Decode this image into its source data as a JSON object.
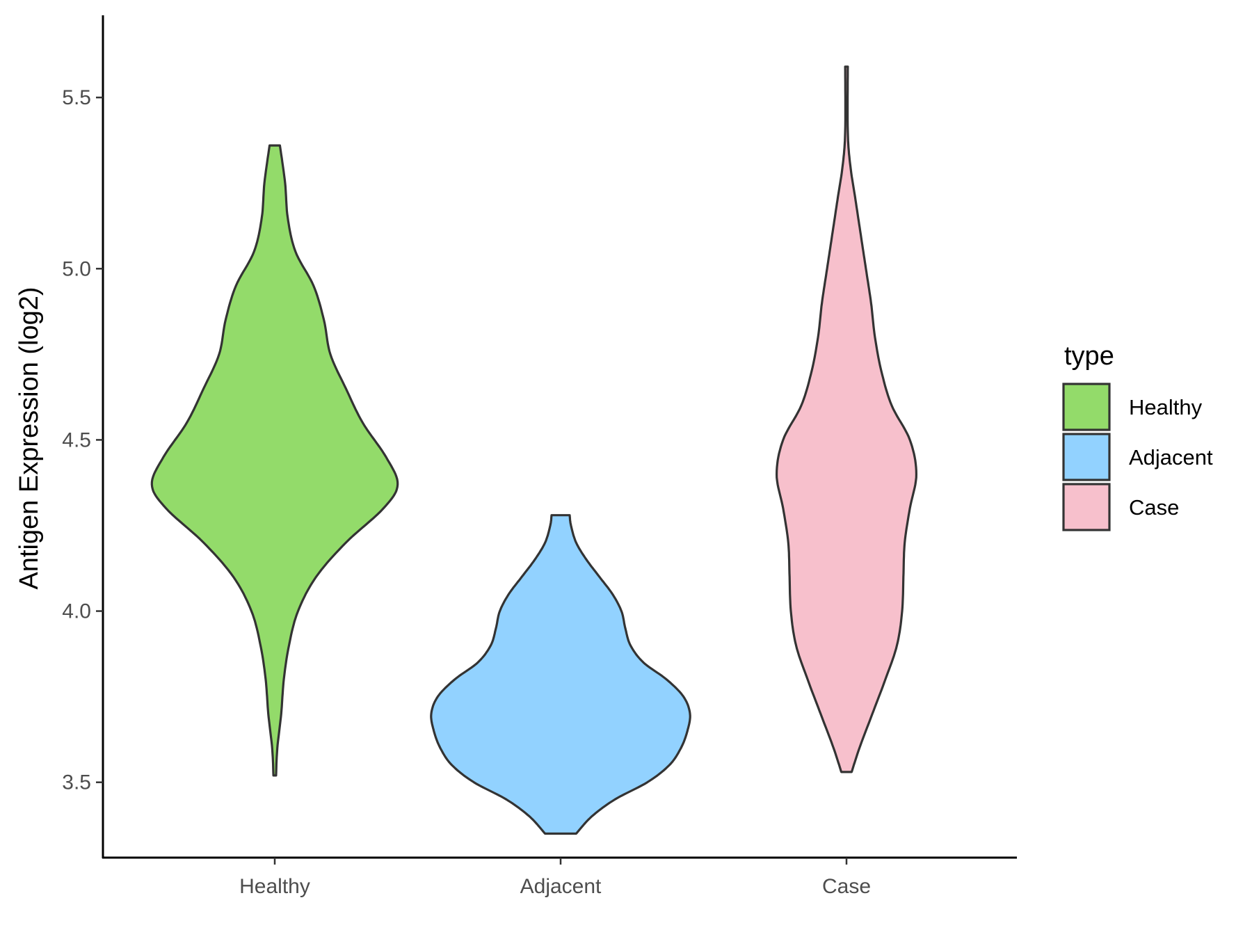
{
  "chart_data": {
    "type": "violin",
    "ylabel": "Antigen Expression (log2)",
    "xlabel": "",
    "ylim": [
      3.28,
      5.74
    ],
    "yticks": [
      3.5,
      4.0,
      4.5,
      5.0,
      5.5
    ],
    "ytick_labels": [
      "3.5",
      "4.0",
      "4.5",
      "5.0",
      "5.5"
    ],
    "categories": [
      "Healthy",
      "Adjacent",
      "Case"
    ],
    "grid": false,
    "legend": {
      "title": "type",
      "position": "right",
      "entries": [
        "Healthy",
        "Adjacent",
        "Case"
      ]
    },
    "series": [
      {
        "name": "Healthy",
        "color": "#93DB6A",
        "min": 3.52,
        "max": 5.36,
        "density_profile": [
          [
            3.52,
            0.01
          ],
          [
            3.6,
            0.02
          ],
          [
            3.7,
            0.05
          ],
          [
            3.8,
            0.07
          ],
          [
            3.9,
            0.11
          ],
          [
            4.0,
            0.18
          ],
          [
            4.1,
            0.32
          ],
          [
            4.2,
            0.55
          ],
          [
            4.3,
            0.84
          ],
          [
            4.37,
            0.95
          ],
          [
            4.45,
            0.86
          ],
          [
            4.55,
            0.68
          ],
          [
            4.65,
            0.55
          ],
          [
            4.75,
            0.43
          ],
          [
            4.85,
            0.38
          ],
          [
            4.95,
            0.3
          ],
          [
            5.05,
            0.16
          ],
          [
            5.15,
            0.1
          ],
          [
            5.25,
            0.08
          ],
          [
            5.36,
            0.04
          ]
        ]
      },
      {
        "name": "Adjacent",
        "color": "#92D2FF",
        "min": 3.35,
        "max": 4.28,
        "density_profile": [
          [
            3.35,
            0.12
          ],
          [
            3.4,
            0.24
          ],
          [
            3.45,
            0.42
          ],
          [
            3.5,
            0.67
          ],
          [
            3.55,
            0.84
          ],
          [
            3.6,
            0.93
          ],
          [
            3.65,
            0.98
          ],
          [
            3.7,
            1.0
          ],
          [
            3.75,
            0.95
          ],
          [
            3.8,
            0.82
          ],
          [
            3.85,
            0.64
          ],
          [
            3.9,
            0.54
          ],
          [
            3.95,
            0.5
          ],
          [
            4.0,
            0.47
          ],
          [
            4.05,
            0.4
          ],
          [
            4.1,
            0.3
          ],
          [
            4.15,
            0.2
          ],
          [
            4.2,
            0.12
          ],
          [
            4.25,
            0.08
          ],
          [
            4.28,
            0.07
          ]
        ]
      },
      {
        "name": "Case",
        "color": "#F7C0CC",
        "min": 3.53,
        "max": 5.59,
        "density_profile": [
          [
            3.53,
            0.04
          ],
          [
            3.6,
            0.1
          ],
          [
            3.7,
            0.2
          ],
          [
            3.8,
            0.3
          ],
          [
            3.9,
            0.39
          ],
          [
            4.0,
            0.43
          ],
          [
            4.1,
            0.44
          ],
          [
            4.2,
            0.45
          ],
          [
            4.3,
            0.49
          ],
          [
            4.4,
            0.54
          ],
          [
            4.5,
            0.49
          ],
          [
            4.6,
            0.35
          ],
          [
            4.7,
            0.27
          ],
          [
            4.8,
            0.22
          ],
          [
            4.9,
            0.19
          ],
          [
            5.0,
            0.15
          ],
          [
            5.1,
            0.11
          ],
          [
            5.2,
            0.07
          ],
          [
            5.3,
            0.03
          ],
          [
            5.4,
            0.01
          ],
          [
            5.59,
            0.01
          ]
        ]
      }
    ]
  }
}
